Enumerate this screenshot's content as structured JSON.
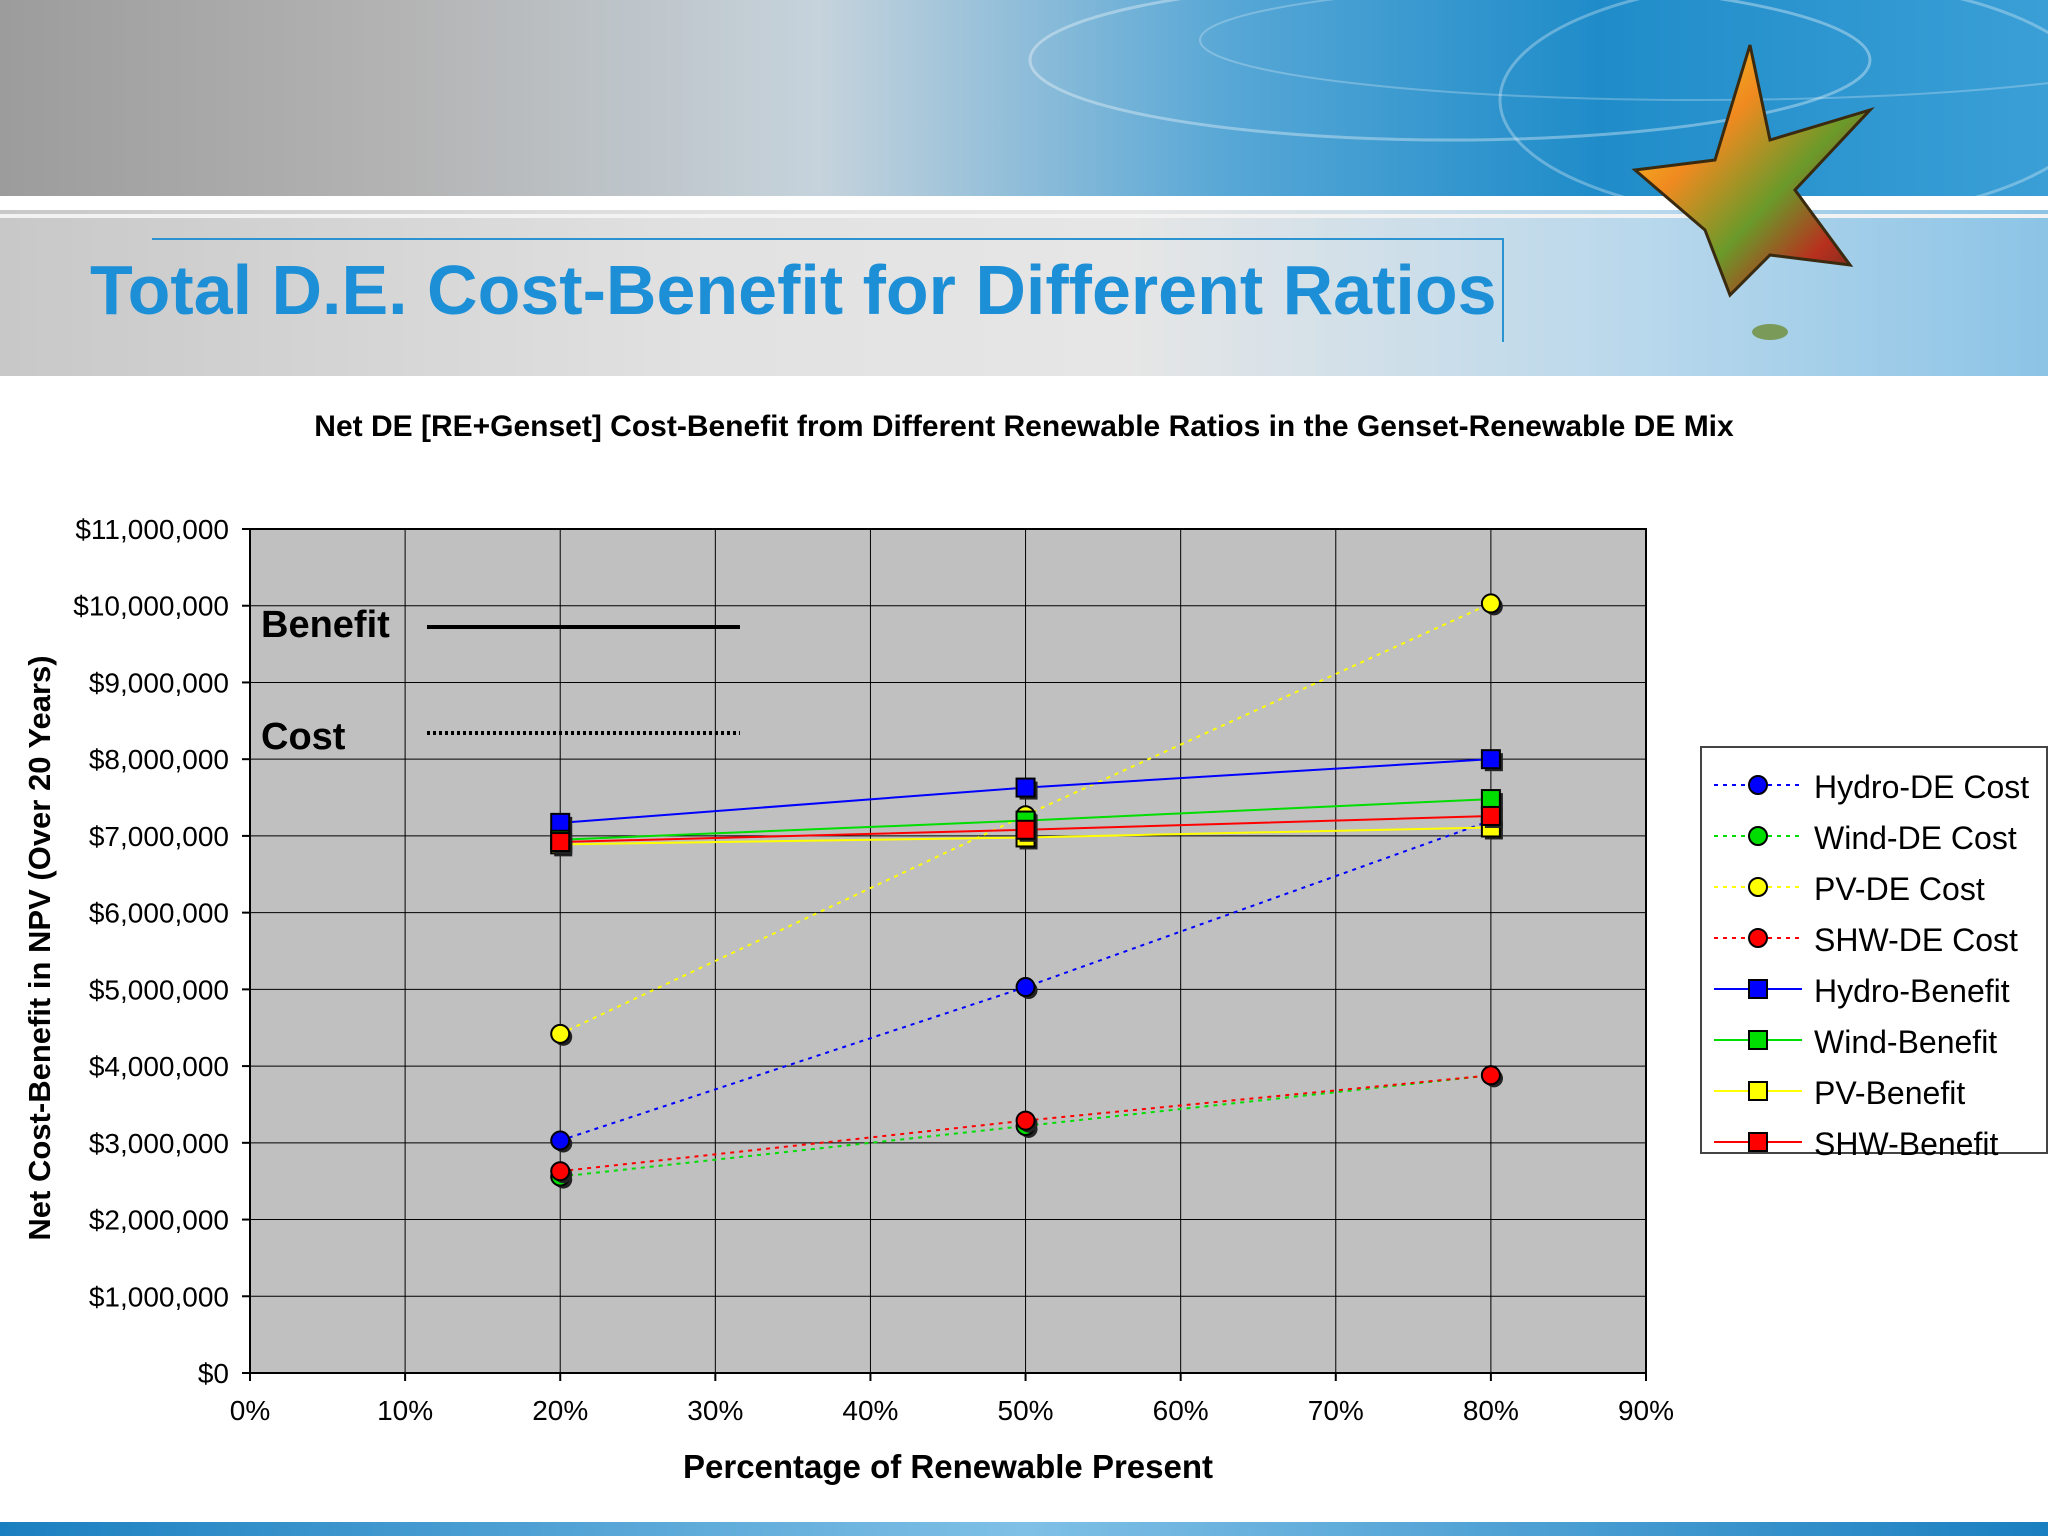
{
  "slide": {
    "title": "Total D.E. Cost-Benefit for Different Ratios"
  },
  "chart_data": {
    "type": "line",
    "title": "Net DE [RE+Genset] Cost-Benefit from Different Renewable Ratios in the Genset-Renewable DE Mix",
    "xlabel": "Percentage of Renewable Present",
    "ylabel": "Net Cost-Benefit in NPV (Over 20 Years)",
    "x": [
      0.2,
      0.5,
      0.8
    ],
    "xlim": [
      0,
      0.9
    ],
    "ylim": [
      0,
      11000000
    ],
    "x_ticks": [
      "0%",
      "10%",
      "20%",
      "30%",
      "40%",
      "50%",
      "60%",
      "70%",
      "80%",
      "90%"
    ],
    "y_ticks": [
      "$0",
      "$1,000,000",
      "$2,000,000",
      "$3,000,000",
      "$4,000,000",
      "$5,000,000",
      "$6,000,000",
      "$7,000,000",
      "$8,000,000",
      "$9,000,000",
      "$10,000,000",
      "$11,000,000"
    ],
    "grid": true,
    "legend_position": "right",
    "annotations": [
      {
        "label": "Benefit",
        "style": "solid"
      },
      {
        "label": "Cost",
        "style": "dotted"
      }
    ],
    "series": [
      {
        "name": "Hydro-DE Cost",
        "color": "#0000ff",
        "marker": "circle",
        "line": "dotted",
        "values": [
          3030000,
          5030000,
          7200000
        ]
      },
      {
        "name": "Wind-DE Cost",
        "color": "#00dd00",
        "marker": "circle",
        "line": "dotted",
        "values": [
          2560000,
          3220000,
          3880000
        ]
      },
      {
        "name": "PV-DE Cost",
        "color": "#ffff00",
        "marker": "circle",
        "line": "dotted",
        "values": [
          4420000,
          7270000,
          10030000
        ]
      },
      {
        "name": "SHW-DE Cost",
        "color": "#ff0000",
        "marker": "circle",
        "line": "dotted",
        "values": [
          2630000,
          3290000,
          3880000
        ]
      },
      {
        "name": "Hydro-Benefit",
        "color": "#0000ff",
        "marker": "square",
        "line": "solid",
        "values": [
          7170000,
          7630000,
          8000000
        ]
      },
      {
        "name": "Wind-Benefit",
        "color": "#00dd00",
        "marker": "square",
        "line": "solid",
        "values": [
          6950000,
          7200000,
          7480000
        ]
      },
      {
        "name": "PV-Benefit",
        "color": "#ffff00",
        "marker": "square",
        "line": "solid",
        "values": [
          6890000,
          6980000,
          7110000
        ]
      },
      {
        "name": "SHW-Benefit",
        "color": "#ff0000",
        "marker": "square",
        "line": "solid",
        "values": [
          6920000,
          7080000,
          7260000
        ]
      }
    ]
  }
}
